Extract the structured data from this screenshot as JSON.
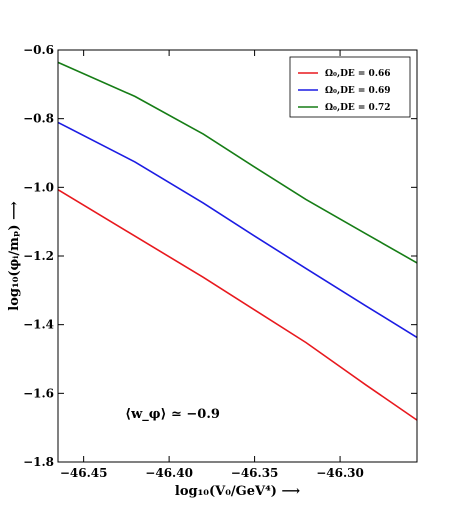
{
  "chart_data": {
    "type": "line",
    "xlabel": "log₁₀(V₀/GeV⁴) ⟶",
    "ylabel": "log₁₀(φᵢ/mₚ) ⟶",
    "xlim": [
      -46.465,
      -46.255
    ],
    "ylim": [
      -1.8,
      -0.6
    ],
    "x_ticks": [
      -46.45,
      -46.4,
      -46.35,
      -46.3
    ],
    "x_tick_labels": [
      "−46.45",
      "−46.40",
      "−46.35",
      "−46.30"
    ],
    "y_ticks": [
      -1.8,
      -1.6,
      -1.4,
      -1.2,
      -1.0,
      -0.8,
      -0.6
    ],
    "y_tick_labels": [
      "−1.8",
      "−1.6",
      "−1.4",
      "−1.2",
      "−1.0",
      "−0.8",
      "−0.6"
    ],
    "grid": false,
    "legend_position": "top-right",
    "series": [
      {
        "name": "Ω0,DE = 0.66",
        "legend_label": "Ω₀,DE = 0.66",
        "color": "#e8191e",
        "x": [
          -46.465,
          -46.42,
          -46.38,
          -46.35,
          -46.32,
          -46.285,
          -46.255
        ],
        "y": [
          -1.007,
          -1.142,
          -1.262,
          -1.357,
          -1.452,
          -1.575,
          -1.678
        ]
      },
      {
        "name": "Ω0,DE = 0.69",
        "legend_label": "Ω₀,DE = 0.69",
        "color": "#1c1ce3",
        "x": [
          -46.465,
          -46.42,
          -46.38,
          -46.35,
          -46.32,
          -46.285,
          -46.255
        ],
        "y": [
          -0.811,
          -0.926,
          -1.046,
          -1.142,
          -1.236,
          -1.345,
          -1.437
        ]
      },
      {
        "name": "Ω0,DE = 0.72",
        "legend_label": "Ω₀,DE = 0.72",
        "color": "#167d16",
        "x": [
          -46.465,
          -46.42,
          -46.38,
          -46.35,
          -46.32,
          -46.285,
          -46.255
        ],
        "y": [
          -0.636,
          -0.735,
          -0.845,
          -0.941,
          -1.035,
          -1.135,
          -1.22
        ]
      }
    ],
    "annotation": {
      "text": "⟨w_φ⟩ ≃ −0.9",
      "x": -46.398,
      "y": -1.66
    }
  }
}
